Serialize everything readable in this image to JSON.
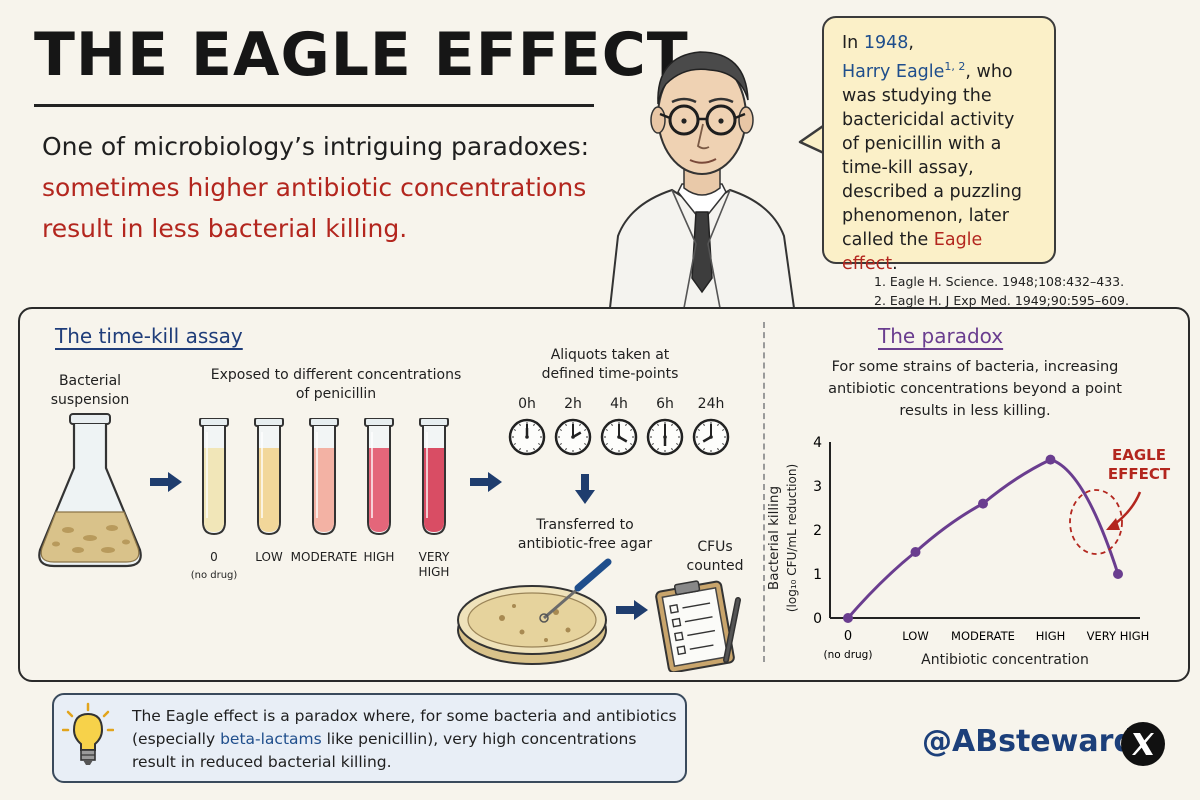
{
  "title": "THE EAGLE EFFECT",
  "intro": {
    "line1": "One of microbiology’s intriguing paradoxes:",
    "highlight": "sometimes higher antibiotic concentrations result in less bacterial killing."
  },
  "bubble": {
    "prefix": "In ",
    "year": "1948",
    "sep": ",",
    "name": "Harry Eagle",
    "sup": "1, 2",
    "body": ", who was studying the bactericidal activity of penicillin with a time-kill assay, described a puzzling phenomenon, later called the ",
    "term": "Eagle effect",
    "end": "."
  },
  "references": [
    "1. Eagle H. Science. 1948;108:432–433.",
    "2. Eagle H. J Exp Med. 1949;90:595–609."
  ],
  "assay": {
    "title": "The time-kill assay",
    "flask_label_1": "Bacterial",
    "flask_label_2": "suspension",
    "exposed_label_1": "Exposed to different concentrations",
    "exposed_label_2": "of penicillin",
    "tubes": [
      {
        "label": "0",
        "sub": "(no drug)",
        "color": "#f1e6b8"
      },
      {
        "label": "LOW",
        "sub": "",
        "color": "#f2d79a"
      },
      {
        "label": "MODERATE",
        "sub": "",
        "color": "#f3b2a4"
      },
      {
        "label": "HIGH",
        "sub": "",
        "color": "#e4667a"
      },
      {
        "label": "VERY",
        "sub": "HIGH",
        "color": "#d94d64"
      }
    ],
    "aliquots_label_1": "Aliquots taken at",
    "aliquots_label_2": "defined time-points",
    "timepoints": [
      "0h",
      "2h",
      "4h",
      "6h",
      "24h"
    ],
    "transfer_label_1": "Transferred to",
    "transfer_label_2": "antibiotic-free agar",
    "cfu_label_1": "CFUs",
    "cfu_label_2": "counted"
  },
  "paradox": {
    "title": "The paradox",
    "description_1": "For some strains of bacteria, increasing",
    "description_2": "antibiotic concentrations beyond a point",
    "description_3": "results in less killing.",
    "annotation_1": "EAGLE",
    "annotation_2": "EFFECT"
  },
  "chart_data": {
    "type": "line",
    "categories": [
      "0",
      "LOW",
      "MODERATE",
      "HIGH",
      "VERY HIGH"
    ],
    "category_sub": [
      "(no drug)",
      "",
      "",
      "",
      ""
    ],
    "values": [
      0,
      1.5,
      2.6,
      3.6,
      1.0
    ],
    "xlabel": "Antibiotic concentration",
    "ylabel": "Bacterial killing",
    "ylabel_sub": "(log₁₀ CFU/mL reduction)",
    "yticks": [
      "0",
      "1",
      "2",
      "3",
      "4"
    ],
    "ylim": [
      0,
      4
    ],
    "grid": false,
    "line_color": "#6a3d8f",
    "annotation_color": "#b3261e"
  },
  "tip": {
    "icon": "lightbulb-icon",
    "text_a": "The Eagle effect is a paradox where, for some bacteria and antibiotics (especially ",
    "term": "beta-lactams",
    "text_b": " like penicillin), very high concentrations result in reduced bacterial killing."
  },
  "handle": "@ABsteward",
  "colors": {
    "accent_red": "#b3261e",
    "accent_blue": "#1f4e8c",
    "purple": "#6a3d8f",
    "bubble": "#fbf0c8",
    "tip": "#e8eef6"
  }
}
